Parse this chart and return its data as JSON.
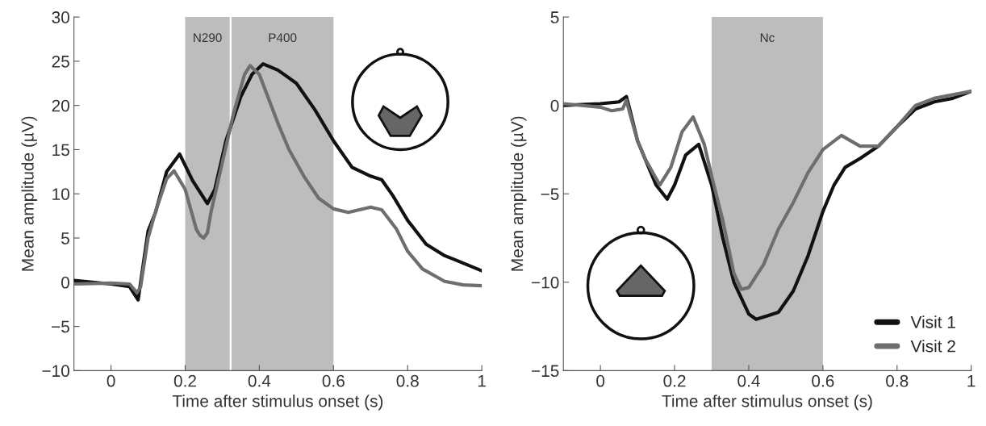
{
  "chart_data": [
    {
      "type": "line",
      "xlabel": "Time after stimulus onset (s)",
      "ylabel": "Mean amplitude (µV)",
      "xlim": [
        -0.1,
        1
      ],
      "ylim": [
        -10,
        30
      ],
      "xticks": [
        0,
        0.2,
        0.4,
        0.6,
        0.8,
        1
      ],
      "yticks": [
        {
          "value": -10,
          "label": "−10"
        },
        {
          "value": -5,
          "label": "−5"
        },
        0,
        5,
        10,
        15,
        20,
        25,
        30
      ],
      "grid": false,
      "legend": false,
      "bands": [
        {
          "axis": "x",
          "from": 0.2,
          "to": 0.32,
          "label": "N290",
          "color": "#bdbdbd"
        },
        {
          "axis": "x",
          "from": 0.325,
          "to": 0.6,
          "label": "P400",
          "color": "#bdbdbd"
        }
      ],
      "series": [
        {
          "color": "#111111",
          "x": [
            -0.1,
            0,
            0.05,
            0.073,
            0.08,
            0.1,
            0.12,
            0.15,
            0.185,
            0.22,
            0.26,
            0.28,
            0.31,
            0.35,
            0.38,
            0.41,
            0.45,
            0.47,
            0.5,
            0.55,
            0.6,
            0.65,
            0.7,
            0.73,
            0.76,
            0.8,
            0.85,
            0.9,
            0.93,
            1.0
          ],
          "values": [
            0.2,
            -0.2,
            -0.5,
            -2,
            0,
            5.8,
            7.9,
            12.5,
            14.5,
            11.5,
            8.9,
            10.5,
            16,
            21,
            23.5,
            24.7,
            24,
            23.4,
            22.5,
            19.5,
            16,
            13,
            12,
            11.6,
            9.8,
            7,
            4.3,
            3,
            2.5,
            1.3
          ]
        },
        {
          "color": "#6e6e6e",
          "x": [
            -0.1,
            0,
            0.05,
            0.07,
            0.08,
            0.1,
            0.12,
            0.15,
            0.17,
            0.2,
            0.23,
            0.24,
            0.25,
            0.26,
            0.27,
            0.3,
            0.33,
            0.36,
            0.375,
            0.4,
            0.45,
            0.48,
            0.52,
            0.56,
            0.6,
            0.64,
            0.7,
            0.73,
            0.77,
            0.8,
            0.84,
            0.9,
            0.95,
            1.0
          ],
          "values": [
            -0.2,
            -0.1,
            -0.2,
            -1.2,
            -0.5,
            5,
            8,
            11.7,
            12.6,
            10.5,
            6,
            5.3,
            5,
            5.6,
            8,
            13.5,
            19,
            23.5,
            24.5,
            23.5,
            18,
            15,
            12,
            9.5,
            8.3,
            7.9,
            8.5,
            8.2,
            6,
            3.5,
            1.5,
            0.1,
            -0.3,
            -0.4
          ]
        }
      ]
    },
    {
      "type": "line",
      "xlabel": "Time after stimulus onset (s)",
      "ylabel": "Mean amplitude (µV)",
      "xlim": [
        -0.1,
        1
      ],
      "ylim": [
        -15,
        5
      ],
      "xticks": [
        0,
        0.2,
        0.4,
        0.6,
        0.8,
        1
      ],
      "yticks": [
        {
          "value": -15,
          "label": "−15"
        },
        {
          "value": -10,
          "label": "−10"
        },
        {
          "value": -5,
          "label": "−5"
        },
        0,
        5
      ],
      "grid": false,
      "legend": "bottom right",
      "bands": [
        {
          "axis": "x",
          "from": 0.3,
          "to": 0.6,
          "label": "Nc",
          "color": "#bdbdbd"
        }
      ],
      "series": [
        {
          "name": "Visit 1",
          "color": "#111111",
          "x": [
            -0.1,
            0,
            0.05,
            0.07,
            0.08,
            0.1,
            0.12,
            0.15,
            0.18,
            0.2,
            0.23,
            0.265,
            0.3,
            0.33,
            0.36,
            0.4,
            0.42,
            0.45,
            0.48,
            0.52,
            0.56,
            0.6,
            0.63,
            0.66,
            0.7,
            0.75,
            0.8,
            0.85,
            0.9,
            0.95,
            1.0
          ],
          "values": [
            0,
            0.1,
            0.2,
            0.5,
            -0.3,
            -2,
            -3,
            -4.5,
            -5.3,
            -4.5,
            -2.8,
            -2.2,
            -4.5,
            -7.5,
            -10,
            -11.8,
            -12.1,
            -11.9,
            -11.7,
            -10.5,
            -8.5,
            -6,
            -4.5,
            -3.5,
            -3,
            -2.3,
            -1.2,
            -0.2,
            0.2,
            0.4,
            0.8
          ]
        },
        {
          "name": "Visit 2",
          "color": "#6e6e6e",
          "x": [
            -0.1,
            0,
            0.03,
            0.06,
            0.07,
            0.08,
            0.1,
            0.12,
            0.16,
            0.19,
            0.22,
            0.25,
            0.28,
            0.3,
            0.33,
            0.36,
            0.38,
            0.4,
            0.44,
            0.48,
            0.52,
            0.56,
            0.6,
            0.65,
            0.7,
            0.75,
            0.8,
            0.85,
            0.9,
            1.0
          ],
          "values": [
            0.1,
            -0.1,
            -0.3,
            -0.2,
            0.3,
            -0.5,
            -2,
            -3,
            -4.5,
            -3.5,
            -1.5,
            -0.65,
            -2.2,
            -4,
            -6.5,
            -9.5,
            -10.4,
            -10.3,
            -9,
            -7,
            -5.5,
            -3.8,
            -2.5,
            -1.7,
            -2.3,
            -2.3,
            -1.2,
            0,
            0.4,
            0.8
          ]
        }
      ]
    }
  ]
}
